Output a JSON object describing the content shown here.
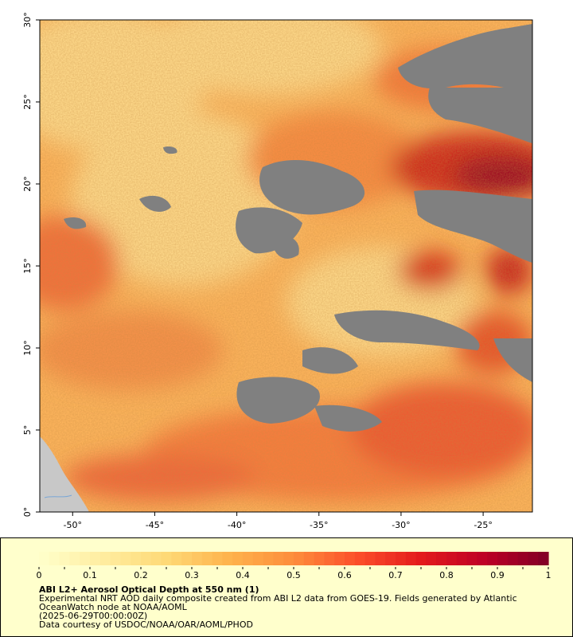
{
  "map": {
    "lon_range": [
      -52,
      -22
    ],
    "lat_range": [
      0,
      30
    ],
    "x_ticks": [
      {
        "value": -50,
        "label": "-50°"
      },
      {
        "value": -45,
        "label": "-45°"
      },
      {
        "value": -40,
        "label": "-40°"
      },
      {
        "value": -35,
        "label": "-35°"
      },
      {
        "value": -30,
        "label": "-30°"
      },
      {
        "value": -25,
        "label": "-25°"
      }
    ],
    "y_ticks": [
      {
        "value": 0,
        "label": "0°"
      },
      {
        "value": 5,
        "label": "5°"
      },
      {
        "value": 10,
        "label": "10°"
      },
      {
        "value": 15,
        "label": "15°"
      },
      {
        "value": 20,
        "label": "20°"
      },
      {
        "value": 25,
        "label": "25°"
      },
      {
        "value": 30,
        "label": "30°"
      }
    ],
    "colors": {
      "no_data": "#808080",
      "land": "#c8c8c8",
      "river": "#7aa6d6"
    }
  },
  "legend": {
    "title": "ABI L2+ Aerosol Optical Depth at 550 nm (1)",
    "description_line1": "Experimental NRT AOD daily composite created from ABI L2 data from GOES-19. Fields generated by Atlantic",
    "description_line2": "OceanWatch node at NOAA/AOML",
    "date": "(2025-06-29T00:00:00Z)",
    "credit": "Data courtesy of USDOC/NOAA/OAR/AOML/PHOD",
    "scale_min": 0,
    "scale_max": 1,
    "ticks": [
      {
        "value": 0,
        "label": "0"
      },
      {
        "value": 0.1,
        "label": "0.1"
      },
      {
        "value": 0.2,
        "label": "0.2"
      },
      {
        "value": 0.3,
        "label": "0.3"
      },
      {
        "value": 0.4,
        "label": "0.4"
      },
      {
        "value": 0.5,
        "label": "0.5"
      },
      {
        "value": 0.6,
        "label": "0.6"
      },
      {
        "value": 0.7,
        "label": "0.7"
      },
      {
        "value": 0.8,
        "label": "0.8"
      },
      {
        "value": 0.9,
        "label": "0.9"
      },
      {
        "value": 1,
        "label": "1"
      }
    ],
    "colormap_stops": [
      "#ffffcc",
      "#ffeda0",
      "#fed976",
      "#feb24c",
      "#fd8d3c",
      "#fc4e2a",
      "#e31a1c",
      "#bd0026",
      "#800026"
    ]
  }
}
